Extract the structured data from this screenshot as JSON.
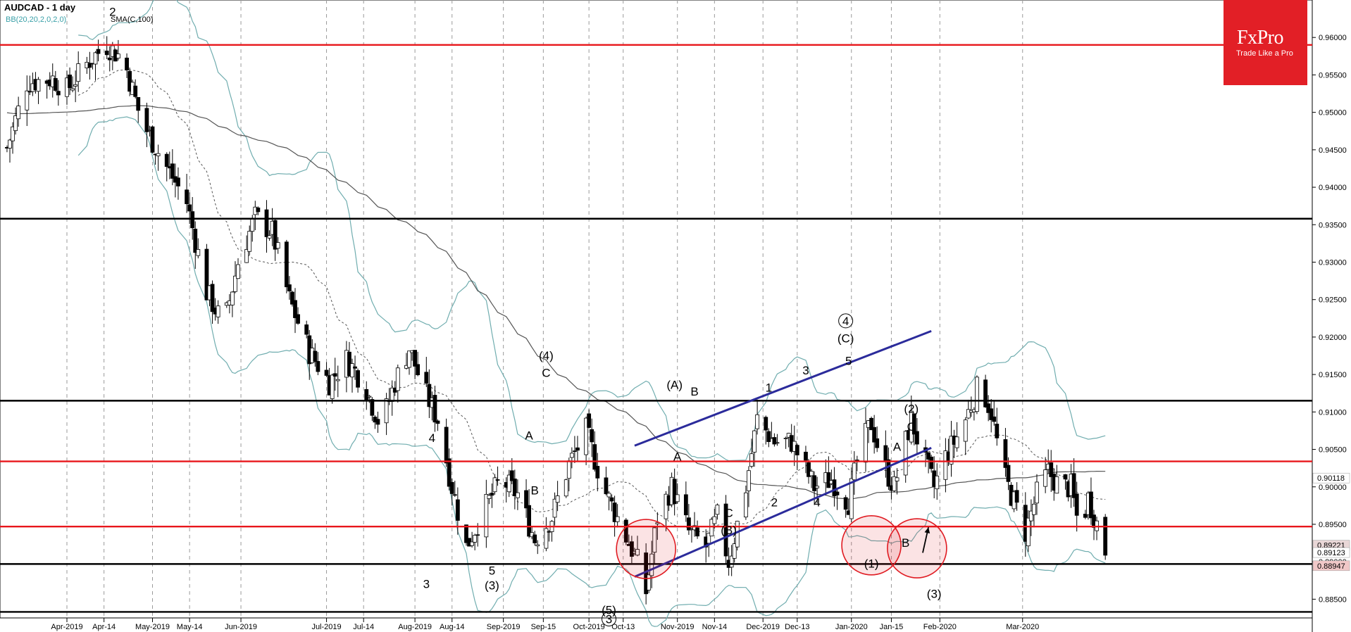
{
  "header": {
    "title": "AUDCAD - 1 day",
    "bb": "BB(20,20,2,0,2,0)",
    "sma": "SMA(C,100)"
  },
  "logo": {
    "brand": "FxPro",
    "tagline": "Trade Like a Pro"
  },
  "colors": {
    "support_resistance_red": "#e8161b",
    "level_black": "#000000",
    "channel_blue": "#2b2b9b",
    "bands": "#70adaf",
    "sma": "#555555",
    "highlight_circle": "#e01b22"
  },
  "chart_data": {
    "type": "candlestick",
    "symbol": "AUDCAD",
    "timeframe": "1 day",
    "ylim": [
      0.8825,
      0.965
    ],
    "y_ticks": [
      "0.96000",
      "0.95500",
      "0.95000",
      "0.94500",
      "0.94000",
      "0.93500",
      "0.93000",
      "0.92500",
      "0.92000",
      "0.91500",
      "0.91000",
      "0.90500",
      "0.90000",
      "0.89500",
      "0.89000",
      "0.88500"
    ],
    "x_labels": [
      "Apr-2019",
      "Apr-14",
      "May-2019",
      "May-14",
      "Jun-2019",
      "Jul-2019",
      "Jul-14",
      "Aug-2019",
      "Aug-14",
      "Sep-2019",
      "Sep-15",
      "Oct-2019",
      "Oct-13",
      "Nov-2019",
      "Nov-14",
      "Dec-2019",
      "Dec-13",
      "Jan-2020",
      "Jan-15",
      "Feb-2020",
      "Mar-2020"
    ],
    "price_labels": [
      {
        "text": "0.90118",
        "value": 0.90118,
        "color": "#ffffff"
      },
      {
        "text": "0.89221",
        "value": 0.89221,
        "color": "#e9d7d7"
      },
      {
        "text": "0.89123",
        "value": 0.89123,
        "color": "#ffffff"
      },
      {
        "text": "0.88947",
        "value": 0.88947,
        "color": "#f1c8c8"
      }
    ],
    "horizontal_levels": [
      {
        "value": 0.959,
        "color": "red"
      },
      {
        "value": 0.9358,
        "color": "black"
      },
      {
        "value": 0.9115,
        "color": "black"
      },
      {
        "value": 0.9034,
        "color": "red"
      },
      {
        "value": 0.8947,
        "color": "red"
      },
      {
        "value": 0.8897,
        "color": "black"
      },
      {
        "value": 0.8833,
        "color": "black"
      }
    ],
    "channel": [
      {
        "from": [
          "Oct-17-2019",
          0.9055
        ],
        "to": [
          "Jan-29-2020",
          0.9208
        ]
      },
      {
        "from": [
          "Oct-17-2019",
          0.888
        ],
        "to": [
          "Jan-29-2020",
          0.9052
        ]
      }
    ],
    "wave_labels": [
      {
        "text": "2",
        "date": "Apr-17-2019",
        "price": 0.9629
      },
      {
        "text": "3",
        "date": "Aug-05-2019",
        "price": 0.8865
      },
      {
        "text": "4",
        "date": "Aug-07-2019",
        "price": 0.906
      },
      {
        "text": "5",
        "date": "Aug-28-2019",
        "price": 0.8883
      },
      {
        "text": "(3)",
        "date": "Aug-28-2019",
        "price": 0.8863
      },
      {
        "text": "A",
        "date": "Sep-10-2019",
        "price": 0.9063
      },
      {
        "text": "B",
        "date": "Sep-12-2019",
        "price": 0.899
      },
      {
        "text": "(4)",
        "date": "Sep-16-2019",
        "price": 0.917
      },
      {
        "text": "C",
        "date": "Sep-16-2019",
        "price": 0.9147
      },
      {
        "text": "(5)",
        "date": "Oct-08-2019",
        "price": 0.883
      },
      {
        "text": "3",
        "date": "Oct-08-2019",
        "price": 0.8818
      },
      {
        "text": "(A)",
        "date": "Oct-31-2019",
        "price": 0.9131
      },
      {
        "text": "A",
        "date": "Nov-01-2019",
        "price": 0.9035
      },
      {
        "text": "B",
        "date": "Nov-07-2019",
        "price": 0.9122
      },
      {
        "text": "C",
        "date": "Nov-19-2019",
        "price": 0.896
      },
      {
        "text": "(B)",
        "date": "Nov-19-2019",
        "price": 0.8937
      },
      {
        "text": "1",
        "date": "Dec-03-2019",
        "price": 0.9127
      },
      {
        "text": "2",
        "date": "Dec-05-2019",
        "price": 0.8974
      },
      {
        "text": "3",
        "date": "Dec-16-2019",
        "price": 0.915
      },
      {
        "text": "4",
        "date": "Dec-20-2019",
        "price": 0.8974
      },
      {
        "text": "4",
        "date": "Dec-30-2019",
        "price": 0.9216
      },
      {
        "text": "(C)",
        "date": "Dec-30-2019",
        "price": 0.9193
      },
      {
        "text": "5",
        "date": "Dec-31-2019",
        "price": 0.9163
      },
      {
        "text": "(1)",
        "date": "Jan-08-2020",
        "price": 0.8892
      },
      {
        "text": "A",
        "date": "Jan-17-2020",
        "price": 0.9048
      },
      {
        "text": "(2)",
        "date": "Jan-22-2020",
        "price": 0.9099
      },
      {
        "text": "C",
        "date": "Jan-22-2020",
        "price": 0.9075
      },
      {
        "text": "B",
        "date": "Jan-20-2020",
        "price": 0.892
      },
      {
        "text": "(3)",
        "date": "Jan-30-2020",
        "price": 0.8852
      }
    ],
    "circled_labels": [
      "4",
      "3"
    ],
    "highlight_circles": [
      {
        "date": "Oct-21-2019",
        "price": 0.8917
      },
      {
        "date": "Jan-08-2020",
        "price": 0.8922
      },
      {
        "date": "Jan-24-2020",
        "price": 0.8918
      }
    ],
    "arrow": {
      "from": [
        "Jan-26-2020",
        0.8912
      ],
      "to": [
        "Jan-28-2020",
        0.8946
      ]
    }
  }
}
